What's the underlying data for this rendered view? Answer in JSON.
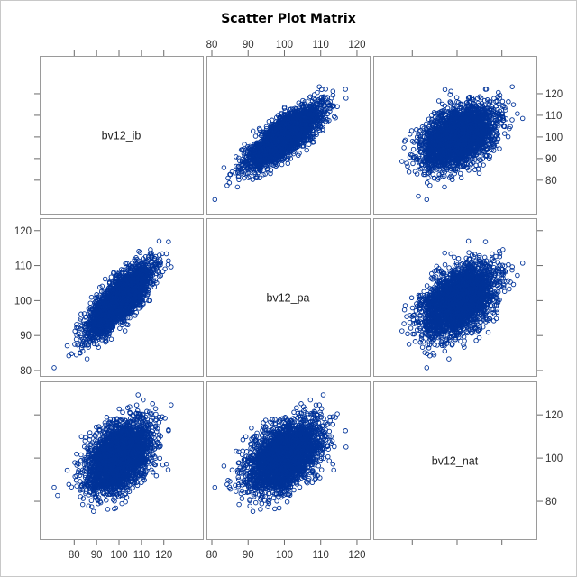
{
  "chart_data": {
    "type": "scatter",
    "subtype": "scatter-matrix",
    "title": "Scatter Plot Matrix",
    "variables": [
      "bv12_ib",
      "bv12_pa",
      "bv12_nat"
    ],
    "axes": {
      "bv12_ib": {
        "range": [
          67,
          135
        ],
        "ticks": [
          "80",
          "90",
          "100",
          "110",
          "120"
        ],
        "tick_values": [
          80,
          90,
          100,
          110,
          120
        ]
      },
      "bv12_pa": {
        "range": [
          80,
          122
        ],
        "ticks": [
          "80",
          "90",
          "100",
          "110",
          "120"
        ],
        "tick_values": [
          80,
          90,
          100,
          110,
          120
        ]
      },
      "bv12_nat": {
        "range": [
          65,
          133
        ],
        "ticks": [
          "80",
          "100",
          "120"
        ],
        "tick_values": [
          80,
          100,
          120
        ]
      }
    },
    "distribution_summary": {
      "bv12_ib": {
        "mean": 100,
        "sd": 7
      },
      "bv12_pa": {
        "mean": 100,
        "sd": 5
      },
      "bv12_nat": {
        "mean": 101,
        "sd": 8
      },
      "correlations": {
        "ib_pa": 0.8,
        "ib_nat": 0.45,
        "pa_nat": 0.45
      },
      "approx_n": 3000
    },
    "marker": {
      "shape": "open-circle",
      "color": "#003399"
    },
    "tick_axes": {
      "top": "bv12_ib",
      "bottom": [
        "bv12_ib",
        "bv12_pa"
      ],
      "left": "bv12_pa",
      "right": [
        "bv12_ib",
        "bv12_nat"
      ]
    },
    "grid": false,
    "legend": "none"
  }
}
